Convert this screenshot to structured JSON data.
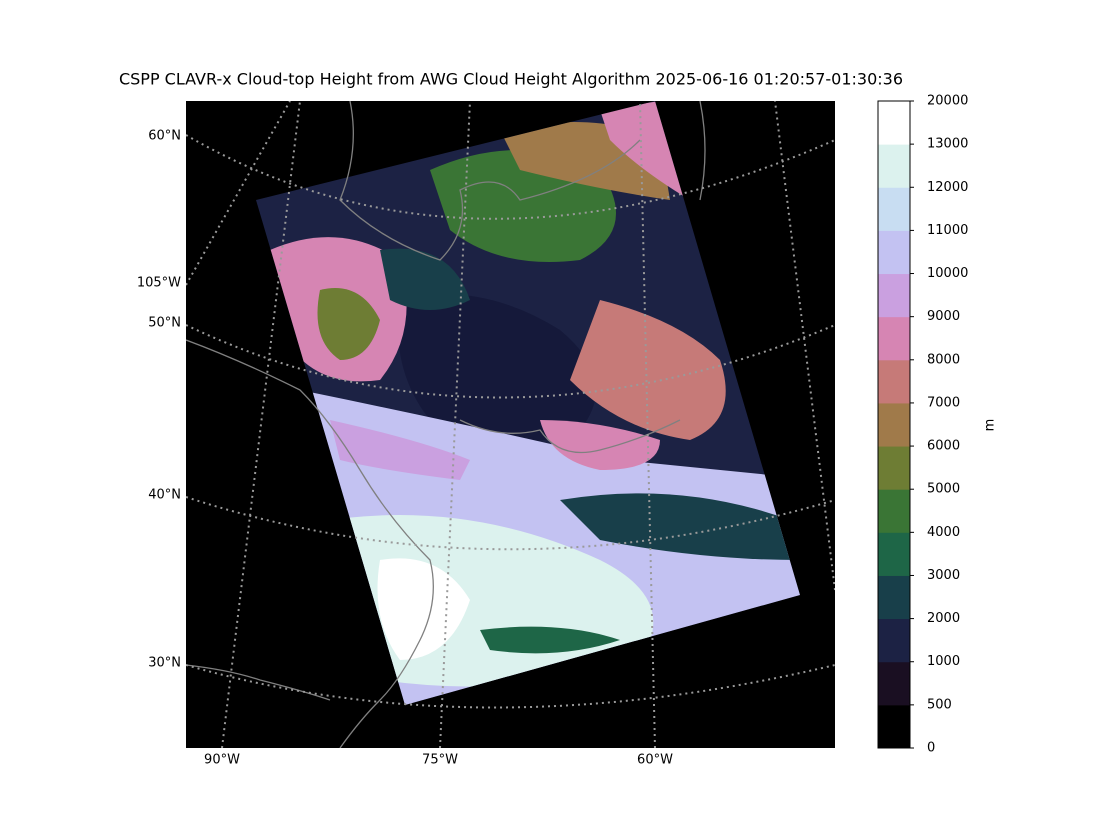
{
  "title": "CSPP CLAVR-x Cloud-top Height from AWG Cloud Height Algorithm 2025-06-16 01:20:57-01:30:36",
  "map": {
    "lat_labels": [
      "60°N",
      "50°N",
      "40°N",
      "30°N"
    ],
    "lon_labels_left": [
      "105°W"
    ],
    "lon_labels_bottom": [
      "90°W",
      "75°W",
      "60°W"
    ]
  },
  "colorbar": {
    "label": "m",
    "ticks": [
      0,
      500,
      1000,
      2000,
      3000,
      4000,
      5000,
      6000,
      7000,
      8000,
      9000,
      10000,
      11000,
      12000,
      13000,
      20000
    ],
    "colors": [
      "#000000",
      "#1a0f22",
      "#1c2244",
      "#183f4a",
      "#1e6647",
      "#3a7535",
      "#6e7d34",
      "#a07a4a",
      "#c67a78",
      "#d685b3",
      "#caa0e0",
      "#c3c2f2",
      "#c8ddf2",
      "#dcf2ee",
      "#ffffff"
    ]
  }
}
